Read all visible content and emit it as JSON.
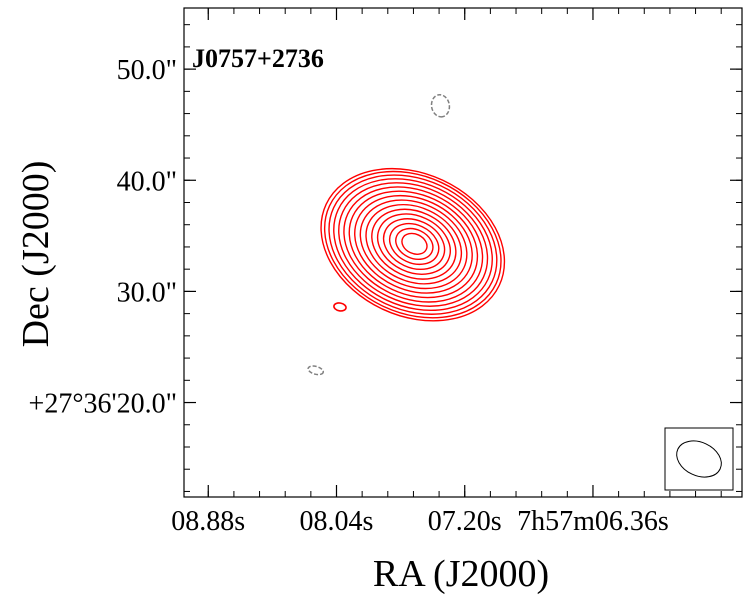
{
  "chart_data": {
    "type": "contour",
    "title": "J0757+2736",
    "xlabel": "RA (J2000)",
    "ylabel": "Dec (J2000)",
    "x_ticks": [
      "08.88s",
      "08.04s",
      "07.20s",
      "7h57m06.36s"
    ],
    "y_ticks": [
      "+27°36'20.0\"",
      "30.0\"",
      "40.0\"",
      "50.0\""
    ],
    "x_tick_offsets_arcsec": [
      11.1,
      0,
      -11.1,
      -22.2
    ],
    "y_tick_offsets_arcsec": [
      0,
      10,
      20,
      30
    ],
    "xlim_arcsec": [
      13.2,
      -35.1
    ],
    "ylim_arcsec": [
      -8.5,
      35.5
    ],
    "positive_contour_color": "#ff0000",
    "negative_contour_color": "#808080",
    "source": {
      "peak_offset_arcsec": [
        -6.6,
        14.2
      ],
      "major_axis_arcsec": 8.6,
      "minor_axis_arcsec": 6.4,
      "position_angle_deg": 115,
      "n_contours": 16
    },
    "negative_blobs": [
      {
        "offset_arcsec": [
          -9.0,
          26.7
        ],
        "major_arcsec": 1.0,
        "minor_arcsec": 0.8,
        "angle_deg": 80
      },
      {
        "offset_arcsec": [
          1.8,
          2.9
        ],
        "major_arcsec": 0.7,
        "minor_arcsec": 0.35,
        "angle_deg": 15
      }
    ],
    "positive_blobs": [
      {
        "offset_arcsec": [
          -0.3,
          8.6
        ],
        "major_arcsec": 0.55,
        "minor_arcsec": 0.35,
        "angle_deg": 10
      }
    ],
    "beam": {
      "major_arcsec": 2.1,
      "minor_arcsec": 1.5,
      "angle_deg": 25
    },
    "legend": "none",
    "grid": false
  }
}
